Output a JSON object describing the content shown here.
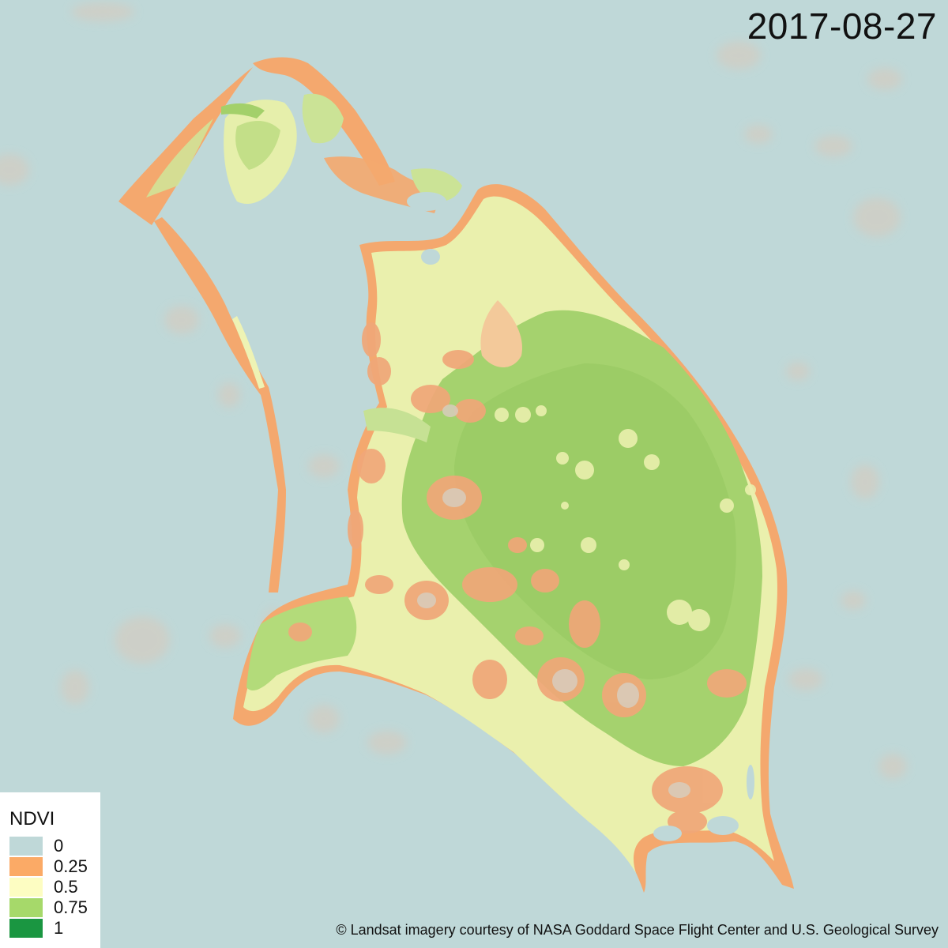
{
  "date_label": "2017-08-27",
  "legend": {
    "title": "NDVI",
    "items": [
      {
        "label": "0",
        "color": "#bfd8d8"
      },
      {
        "label": "0.25",
        "color": "#fbaa66"
      },
      {
        "label": "0.5",
        "color": "#fdfdc2"
      },
      {
        "label": "0.75",
        "color": "#a6d96a"
      },
      {
        "label": "1",
        "color": "#1a9641"
      }
    ]
  },
  "credit": "© Landsat imagery courtesy of NASA Goddard Space Flight Center and U.S. Geological Survey",
  "colors": {
    "water": "#bfd8d8",
    "shore": "#f4a86e",
    "light_veg": "#eef3b4",
    "veg": "#b3db7a",
    "dense_veg": "#a3d06a",
    "cloud": "#d7c9bb"
  }
}
